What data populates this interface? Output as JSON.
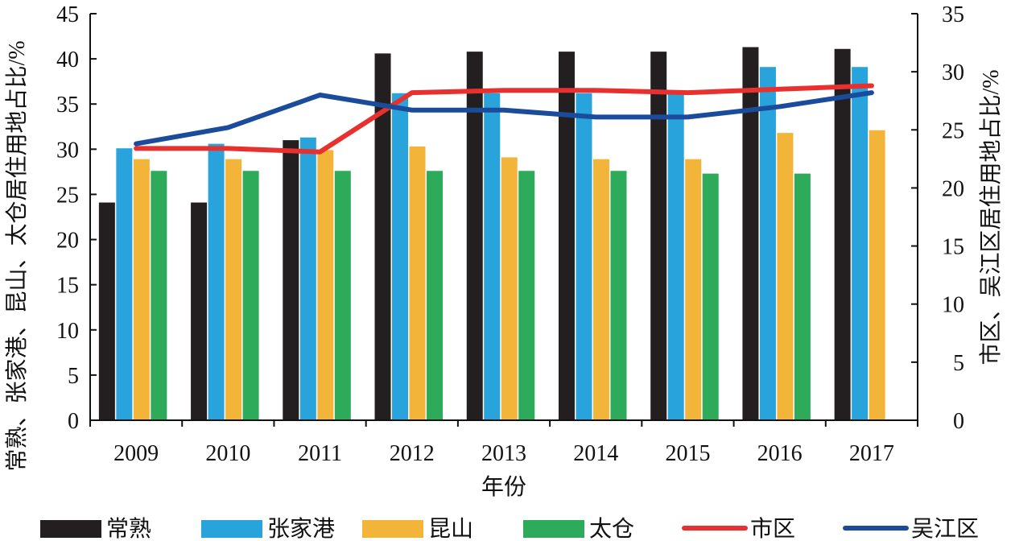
{
  "chart_data": {
    "type": "bar",
    "categories": [
      "2009",
      "2010",
      "2011",
      "2012",
      "2013",
      "2014",
      "2015",
      "2016",
      "2017"
    ],
    "xlabel": "年份",
    "ylabel_left": "常熟、张家港、昆山、太仓居住用地占比/%",
    "ylabel_right": "市区、吴江区居住用地占比/%",
    "ylim_left": [
      0,
      45
    ],
    "yticks_left": [
      "0",
      "5",
      "10",
      "15",
      "20",
      "25",
      "30",
      "35",
      "40",
      "45"
    ],
    "ylim_right": [
      0,
      35
    ],
    "yticks_right": [
      "0",
      "5",
      "10",
      "15",
      "20",
      "25",
      "30",
      "35"
    ],
    "grid": false,
    "legend_position": "bottom",
    "bar_series": [
      {
        "name": "常熟",
        "axis": "left",
        "color": "#231f20",
        "values": [
          24.1,
          24.1,
          31.0,
          40.6,
          40.8,
          40.8,
          40.8,
          41.3,
          41.1
        ]
      },
      {
        "name": "张家港",
        "axis": "left",
        "color": "#29a3dc",
        "values": [
          30.1,
          30.6,
          31.3,
          36.2,
          36.2,
          36.2,
          36.2,
          39.1,
          39.1
        ]
      },
      {
        "name": "昆山",
        "axis": "left",
        "color": "#f3b43a",
        "values": [
          28.9,
          28.9,
          29.9,
          30.3,
          29.1,
          28.9,
          28.9,
          31.8,
          32.1
        ]
      },
      {
        "name": "太仓",
        "axis": "left",
        "color": "#2dab5a",
        "values": [
          27.6,
          27.6,
          27.6,
          27.6,
          27.6,
          27.6,
          27.3,
          27.3,
          null
        ]
      }
    ],
    "line_series": [
      {
        "name": "市区",
        "axis": "right",
        "color": "#e8312f",
        "values": [
          23.4,
          23.4,
          23.1,
          28.2,
          28.4,
          28.4,
          28.2,
          28.5,
          28.8
        ]
      },
      {
        "name": "吴江区",
        "axis": "right",
        "color": "#1b4c9c",
        "values": [
          23.8,
          25.2,
          28.0,
          26.7,
          26.7,
          26.1,
          26.1,
          27.0,
          28.2
        ]
      }
    ]
  }
}
